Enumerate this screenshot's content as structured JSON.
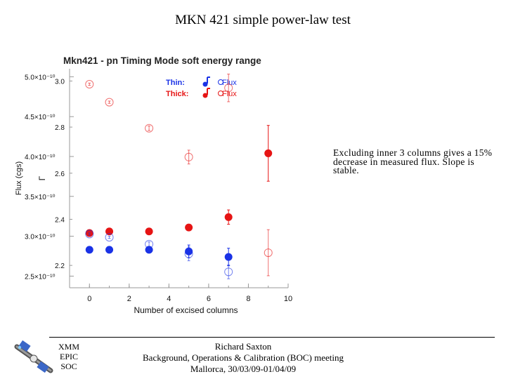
{
  "slide": {
    "title": "MKN 421 simple power-law test",
    "note": "Excluding inner 3 columns gives a 15% decrease in measured flux. Slope is stable.",
    "org_lines": [
      "XMM",
      "EPIC",
      "SOC"
    ],
    "footer_lines": [
      "Richard Saxton",
      "Background, Operations & Calibration (BOC) meeting",
      "Mallorca, 30/03/09-01/04/09"
    ]
  },
  "colors": {
    "thin": "#1a32e6",
    "thick": "#e61414"
  },
  "chart_data": {
    "type": "scatter",
    "title": "Mkn421 - pn Timing Mode soft energy range",
    "xlabel": "Number of excised columns",
    "ylabel_flux": "Flux (cgs)",
    "ylabel_gamma": "Γ",
    "xlim": [
      -1,
      10
    ],
    "x_ticks": [
      0,
      2,
      4,
      6,
      8,
      10
    ],
    "flux_axis": {
      "range": [
        2.354,
        5.1
      ],
      "ticks": [
        {
          "v": 2.5,
          "label": "2.5×10⁻¹⁰"
        },
        {
          "v": 3.0,
          "label": "3.0×10⁻¹⁰"
        },
        {
          "v": 3.5,
          "label": "3.5×10⁻¹⁰"
        },
        {
          "v": 4.0,
          "label": "4.0×10⁻¹⁰"
        },
        {
          "v": 4.5,
          "label": "4.5×10⁻¹⁰"
        },
        {
          "v": 5.0,
          "label": "5.0×10⁻¹⁰"
        }
      ]
    },
    "gamma_axis": {
      "range": [
        2.103,
        3.053
      ],
      "ticks": [
        {
          "v": 2.2,
          "label": "2.2"
        },
        {
          "v": 2.4,
          "label": "2.4"
        },
        {
          "v": 2.6,
          "label": "2.6"
        },
        {
          "v": 2.8,
          "label": "2.8"
        },
        {
          "v": 3.0,
          "label": "3.0"
        }
      ]
    },
    "legend": {
      "position": "top-center",
      "rows": [
        {
          "label": "Thin:",
          "series_label": "Flux",
          "color_key": "thin"
        },
        {
          "label": "Thick:",
          "series_label": "Flux",
          "color_key": "thick"
        }
      ]
    },
    "series": [
      {
        "name": "Thin Flux",
        "color_key": "thin",
        "marker": "filled",
        "axis": "flux",
        "x": [
          0,
          1,
          3,
          5,
          7
        ],
        "y": [
          2.83,
          2.83,
          2.83,
          2.81,
          2.74
        ],
        "err": [
          0.01,
          0.01,
          0.04,
          0.08,
          0.11
        ]
      },
      {
        "name": "Thick Flux",
        "color_key": "thick",
        "marker": "filled",
        "axis": "flux",
        "x": [
          0,
          1,
          3,
          5,
          7,
          9
        ],
        "y": [
          3.04,
          3.06,
          3.06,
          3.11,
          3.24,
          4.04
        ],
        "err": [
          0.015,
          0.015,
          0.015,
          0.04,
          0.09,
          0.35
        ]
      },
      {
        "name": "Thin Γ",
        "color_key": "thin",
        "marker": "open",
        "axis": "gamma",
        "x": [
          0,
          1,
          3,
          5,
          7
        ],
        "y": [
          2.336,
          2.322,
          2.292,
          2.25,
          2.172
        ],
        "err": [
          0.005,
          0.005,
          0.01,
          0.03,
          0.03
        ]
      },
      {
        "name": "Thick Γ",
        "color_key": "thick",
        "marker": "open",
        "axis": "gamma",
        "x": [
          0,
          1,
          3,
          5,
          7,
          9
        ],
        "y": [
          2.986,
          2.908,
          2.795,
          2.67,
          2.97,
          2.255
        ],
        "err": [
          0.005,
          0.005,
          0.01,
          0.03,
          0.06,
          0.1
        ]
      }
    ]
  }
}
